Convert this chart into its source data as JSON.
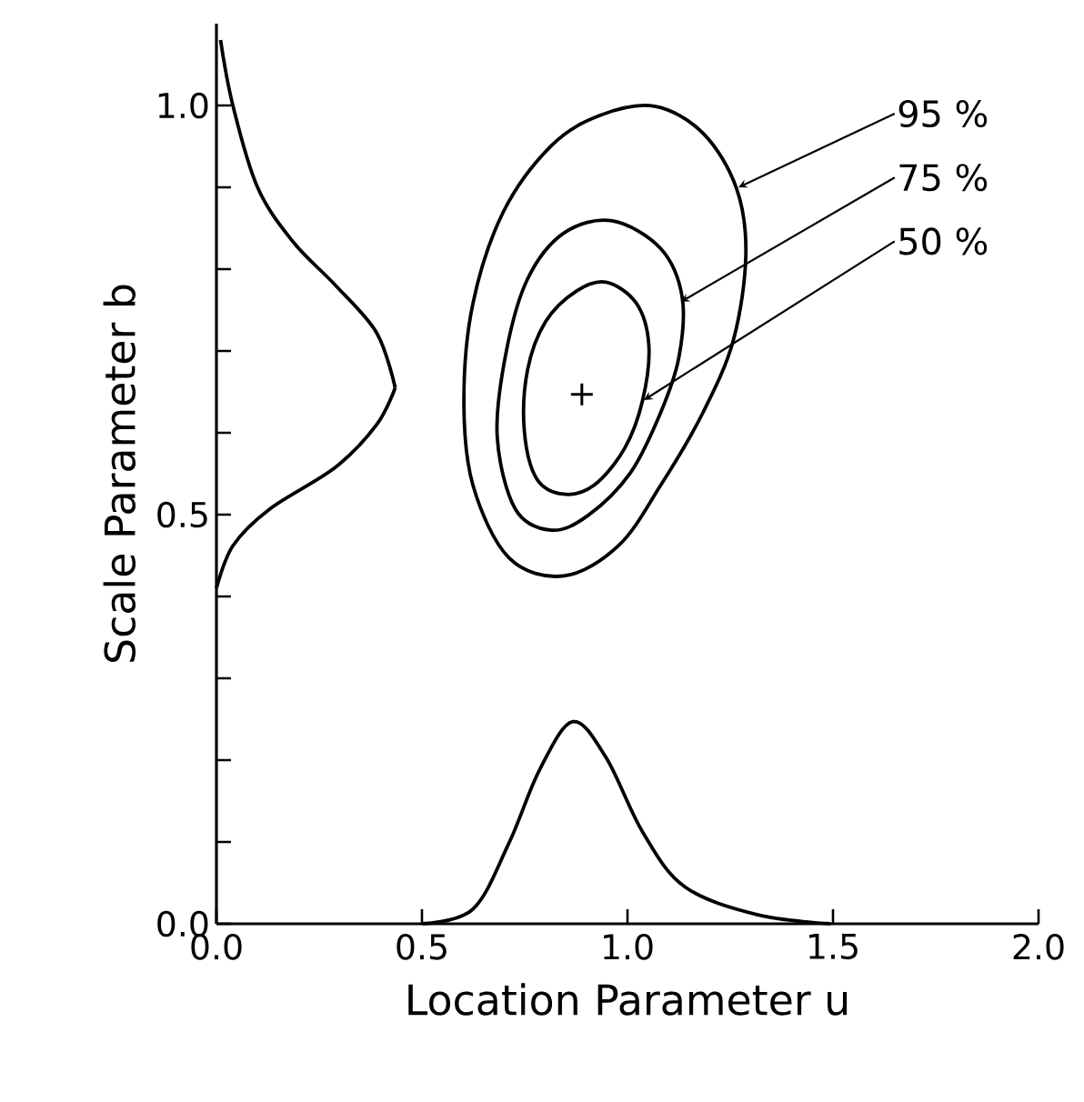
{
  "chart_data": {
    "type": "line",
    "xlabel": "Location Parameter  u",
    "ylabel": "Scale Parameter  b",
    "xlim": [
      0,
      2.0
    ],
    "ylim": [
      0,
      1.1
    ],
    "xticks": [
      {
        "value": 0,
        "label": "0.0"
      },
      {
        "value": 0.5,
        "label": "0.5"
      },
      {
        "value": 1.0,
        "label": "1.0"
      },
      {
        "value": 1.5,
        "label": "1.5"
      },
      {
        "value": 2.0,
        "label": "2.0"
      }
    ],
    "yticks": [
      {
        "value": 0,
        "label": "0.0"
      },
      {
        "value": 0.1,
        "label": null
      },
      {
        "value": 0.2,
        "label": null
      },
      {
        "value": 0.3,
        "label": null
      },
      {
        "value": 0.4,
        "label": null
      },
      {
        "value": 0.5,
        "label": "0.5"
      },
      {
        "value": 0.6,
        "label": null
      },
      {
        "value": 0.7,
        "label": null
      },
      {
        "value": 0.8,
        "label": null
      },
      {
        "value": 0.9,
        "label": null
      },
      {
        "value": 1.0,
        "label": "1.0"
      }
    ],
    "series": [
      {
        "color": "#000000",
        "x": [
          0.5,
          0.624,
          0.712,
          0.786,
          0.867,
          0.948,
          1.037,
          1.14,
          1.317,
          1.494
        ],
        "values": [
          0,
          0.018,
          0.099,
          0.188,
          0.247,
          0.203,
          0.112,
          0.045,
          0.011,
          0
        ]
      },
      {
        "color": "#000000",
        "x": [
          0,
          0.04,
          0.13,
          0.29,
          0.39,
          0.435
        ],
        "values": [
          0.41,
          0.462,
          0.507,
          0.558,
          0.61,
          0.655
        ]
      },
      {
        "color": "#000000",
        "x": [
          0.01,
          0.04,
          0.1,
          0.187,
          0.29,
          0.39,
          0.435
        ],
        "values": [
          1.08,
          1.0,
          0.9,
          0.833,
          0.78,
          0.722,
          0.655
        ]
      },
      {
        "type": "scatter",
        "color": "#000000",
        "marker": "cross",
        "x": [
          0.889
        ],
        "values": [
          0.647
        ]
      }
    ],
    "annotations": [
      "95 %",
      "75 %",
      "50 %"
    ]
  }
}
